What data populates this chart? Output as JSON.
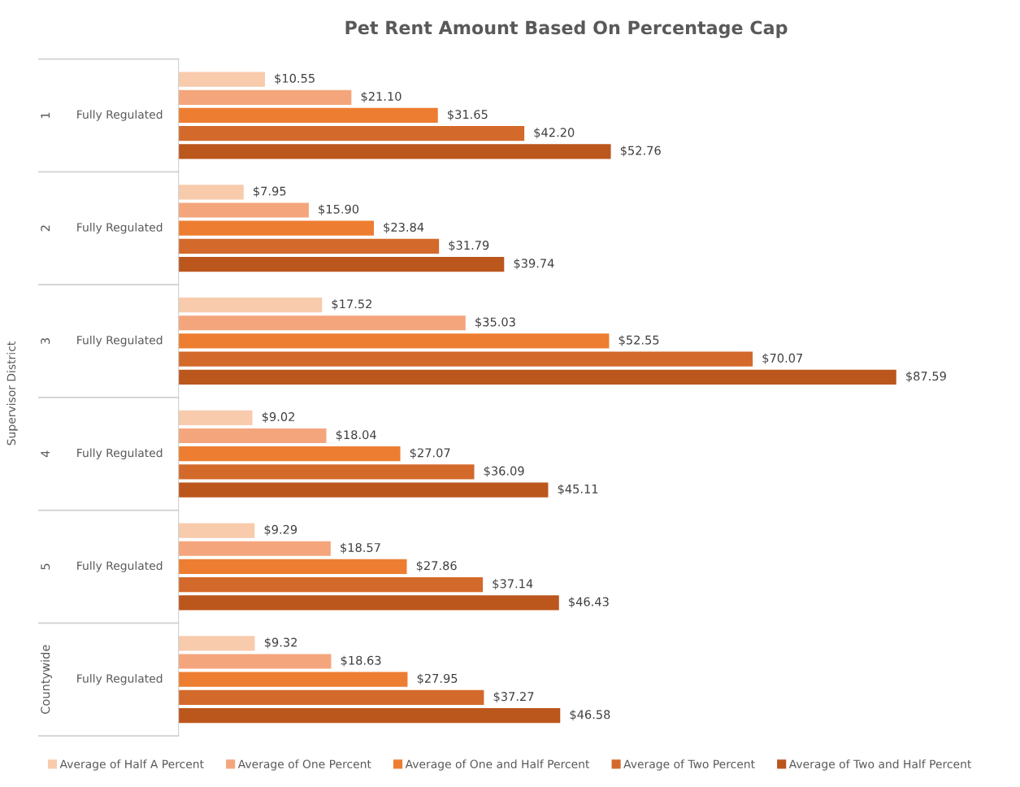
{
  "chart_data": {
    "type": "bar",
    "orientation": "horizontal",
    "title": "Pet Rent Amount Based On Percentage Cap",
    "ylabel": "Supervisor District",
    "categories": [
      "1",
      "2",
      "3",
      "4",
      "5",
      "Countywide"
    ],
    "annotations": [
      "Fully Regulated",
      "Fully Regulated",
      "Fully Regulated",
      "Fully Regulated",
      "Fully Regulated",
      "Fully Regulated"
    ],
    "series": [
      {
        "name": "Average of Half A Percent",
        "color": "#f8cbad",
        "values": [
          10.55,
          7.95,
          17.52,
          9.02,
          9.29,
          9.32
        ],
        "value_labels": [
          "$10.55",
          "$7.95",
          "$17.52",
          "$9.02",
          "$9.29",
          "$9.32"
        ]
      },
      {
        "name": "Average of One Percent",
        "color": "#f4a57c",
        "values": [
          21.1,
          15.9,
          35.03,
          18.04,
          18.57,
          18.63
        ],
        "value_labels": [
          "$21.10",
          "$15.90",
          "$35.03",
          "$18.04",
          "$18.57",
          "$18.63"
        ]
      },
      {
        "name": "Average of One and Half Percent",
        "color": "#ed7d31",
        "values": [
          31.65,
          23.84,
          52.55,
          27.07,
          27.86,
          27.95
        ],
        "value_labels": [
          "$31.65",
          "$23.84",
          "$52.55",
          "$27.07",
          "$27.86",
          "$27.95"
        ]
      },
      {
        "name": "Average of Two Percent",
        "color": "#d3692a",
        "values": [
          42.2,
          31.79,
          70.07,
          36.09,
          37.14,
          37.27
        ],
        "value_labels": [
          "$42.20",
          "$31.79",
          "$70.07",
          "$36.09",
          "$37.14",
          "$37.27"
        ]
      },
      {
        "name": "Average of Two and Half Percent",
        "color": "#bb561d",
        "values": [
          52.76,
          39.74,
          87.59,
          45.11,
          46.43,
          46.58
        ],
        "value_labels": [
          "$52.76",
          "$39.74",
          "$87.59",
          "$45.11",
          "$46.43",
          "$46.58"
        ]
      }
    ],
    "legend": "bottom",
    "grid": false
  }
}
